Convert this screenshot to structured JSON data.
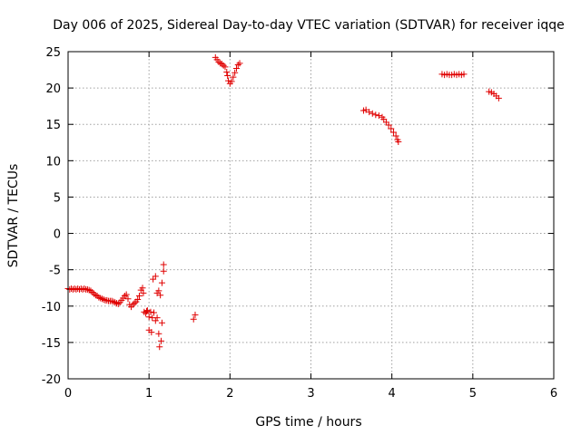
{
  "chart_data": {
    "type": "scatter",
    "title": "Day 006 of 2025, Sidereal Day-to-day VTEC variation (SDTVAR) for receiver iqqe",
    "xlabel": "GPS time / hours",
    "ylabel": "SDTVAR / TECUs",
    "xlim": [
      0,
      6
    ],
    "ylim": [
      -20,
      25
    ],
    "xticks": [
      "0",
      "1",
      "2",
      "3",
      "4",
      "5",
      "6"
    ],
    "yticks": [
      "-20",
      "-15",
      "-10",
      "-5",
      "0",
      "5",
      "10",
      "15",
      "20",
      "25"
    ],
    "grid": true,
    "marker": "+",
    "marker_color": "#e00000",
    "series": [
      {
        "name": "SDTVAR",
        "x": [
          0.0,
          0.02,
          0.04,
          0.06,
          0.08,
          0.1,
          0.12,
          0.14,
          0.16,
          0.18,
          0.2,
          0.22,
          0.24,
          0.26,
          0.28,
          0.3,
          0.32,
          0.34,
          0.36,
          0.38,
          0.4,
          0.42,
          0.44,
          0.46,
          0.48,
          0.5,
          0.52,
          0.54,
          0.56,
          0.58,
          0.6,
          0.62,
          0.64,
          0.66,
          0.68,
          0.7,
          0.72,
          0.74,
          0.76,
          0.78,
          0.8,
          0.82,
          0.84,
          0.86,
          0.88,
          0.9,
          0.92,
          0.94,
          0.96,
          0.98,
          1.0,
          1.02,
          1.04,
          1.06,
          1.08,
          1.1,
          1.12,
          1.14,
          1.16,
          1.18,
          0.93,
          0.97,
          1.0,
          1.03,
          1.05,
          1.08,
          1.1,
          1.12,
          1.13,
          1.15,
          1.16,
          1.18,
          1.55,
          1.57,
          1.82,
          1.84,
          1.86,
          1.88,
          1.9,
          1.92,
          1.94,
          1.96,
          1.97,
          1.98,
          2.0,
          2.02,
          2.04,
          2.06,
          2.08,
          2.1,
          2.12,
          3.65,
          3.68,
          3.72,
          3.76,
          3.8,
          3.84,
          3.88,
          3.9,
          3.93,
          3.96,
          3.99,
          4.02,
          4.05,
          4.07,
          4.08,
          4.62,
          4.65,
          4.68,
          4.71,
          4.74,
          4.77,
          4.8,
          4.83,
          4.86,
          4.89,
          5.2,
          5.23,
          5.26,
          5.29,
          5.32
        ],
        "y": [
          -7.6,
          -7.7,
          -7.6,
          -7.7,
          -7.6,
          -7.7,
          -7.6,
          -7.7,
          -7.6,
          -7.7,
          -7.6,
          -7.7,
          -7.7,
          -7.8,
          -7.9,
          -8.1,
          -8.3,
          -8.5,
          -8.6,
          -8.8,
          -8.9,
          -9.0,
          -9.1,
          -9.2,
          -9.2,
          -9.3,
          -9.3,
          -9.3,
          -9.4,
          -9.5,
          -9.6,
          -9.7,
          -9.5,
          -9.2,
          -8.9,
          -8.6,
          -8.4,
          -9.0,
          -9.8,
          -10.1,
          -9.8,
          -9.6,
          -9.4,
          -9.1,
          -8.6,
          -7.8,
          -7.5,
          -10.8,
          -11.0,
          -10.6,
          -11.5,
          -10.8,
          -11.6,
          -10.9,
          -12.0,
          -8.2,
          -7.9,
          -8.5,
          -6.8,
          -5.2,
          -8.2,
          -10.7,
          -13.3,
          -13.6,
          -6.3,
          -5.9,
          -11.6,
          -13.8,
          -15.6,
          -14.8,
          -12.3,
          -4.3,
          -11.8,
          -11.2,
          24.2,
          23.9,
          23.6,
          23.4,
          23.3,
          23.1,
          22.9,
          22.2,
          21.7,
          21.0,
          20.6,
          20.9,
          21.5,
          22.1,
          22.7,
          23.2,
          23.4,
          16.9,
          17.0,
          16.7,
          16.5,
          16.3,
          16.2,
          16.0,
          15.7,
          15.3,
          14.9,
          14.4,
          13.9,
          13.4,
          12.9,
          12.6,
          21.9,
          21.8,
          21.9,
          21.8,
          21.8,
          21.9,
          21.8,
          21.9,
          21.8,
          21.9,
          19.5,
          19.4,
          19.2,
          18.9,
          18.6
        ]
      }
    ]
  }
}
